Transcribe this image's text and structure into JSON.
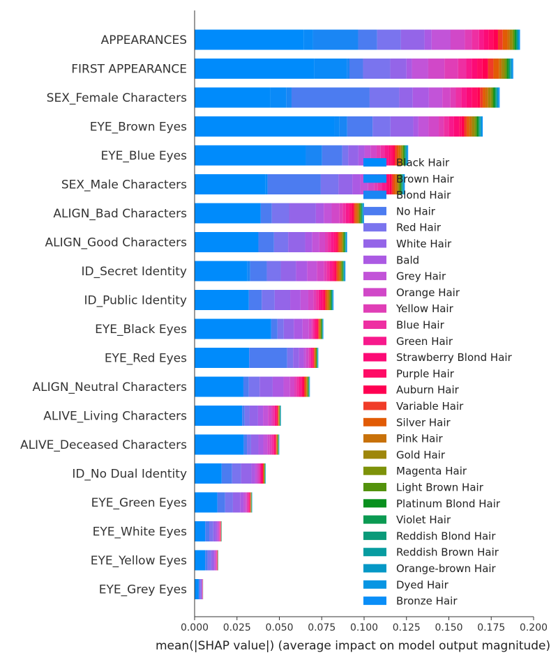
{
  "chart_data": {
    "type": "bar",
    "orientation": "horizontal",
    "stacked": true,
    "title": "",
    "xlabel": "mean(|SHAP value|) (average impact on model output magnitude)",
    "ylabel": "",
    "xlim": [
      0,
      0.2
    ],
    "xticks": [
      "0.000",
      "0.025",
      "0.050",
      "0.075",
      "0.100",
      "0.125",
      "0.150",
      "0.175",
      "0.200"
    ],
    "grid": false,
    "legend_position": "right",
    "categories": [
      "APPEARANCES",
      "FIRST APPEARANCE",
      "SEX_Female Characters",
      "EYE_Brown Eyes",
      "EYE_Blue Eyes",
      "SEX_Male Characters",
      "ALIGN_Bad Characters",
      "ALIGN_Good Characters",
      "ID_Secret Identity",
      "ID_Public Identity",
      "EYE_Black Eyes",
      "EYE_Red Eyes",
      "ALIGN_Neutral Characters",
      "ALIVE_Living Characters",
      "ALIVE_Deceased Characters",
      "ID_No Dual Identity",
      "EYE_Green Eyes",
      "EYE_White Eyes",
      "EYE_Yellow Eyes",
      "EYE_Grey Eyes"
    ],
    "totals": [
      0.192,
      0.188,
      0.18,
      0.17,
      0.126,
      0.124,
      0.1,
      0.09,
      0.089,
      0.082,
      0.076,
      0.073,
      0.068,
      0.051,
      0.05,
      0.042,
      0.034,
      0.016,
      0.014,
      0.005
    ],
    "series": [
      {
        "name": "Black Hair",
        "color": "#008bfb"
      },
      {
        "name": "Brown Hair",
        "color": "#0a8af8"
      },
      {
        "name": "Blond Hair",
        "color": "#1a86f4"
      },
      {
        "name": "No Hair",
        "color": "#4c7cf0"
      },
      {
        "name": "Red Hair",
        "color": "#7a74ee"
      },
      {
        "name": "White Hair",
        "color": "#9465e8"
      },
      {
        "name": "Bald",
        "color": "#ab5ae3"
      },
      {
        "name": "Grey Hair",
        "color": "#c254d8"
      },
      {
        "name": "Orange Hair",
        "color": "#d148c8"
      },
      {
        "name": "Yellow Hair",
        "color": "#e03eb6"
      },
      {
        "name": "Blue Hair",
        "color": "#ee2fa2"
      },
      {
        "name": "Green Hair",
        "color": "#f7198c"
      },
      {
        "name": "Strawberry Blond Hair",
        "color": "#fc0b76"
      },
      {
        "name": "Purple Hair",
        "color": "#ff0c66"
      },
      {
        "name": "Auburn Hair",
        "color": "#ff0052"
      },
      {
        "name": "Variable Hair",
        "color": "#f03c28"
      },
      {
        "name": "Silver Hair",
        "color": "#e15b05"
      },
      {
        "name": "Pink Hair",
        "color": "#c87109"
      },
      {
        "name": "Gold Hair",
        "color": "#9e860a"
      },
      {
        "name": "Magenta Hair",
        "color": "#7d9209"
      },
      {
        "name": "Light Brown Hair",
        "color": "#53920c"
      },
      {
        "name": "Platinum Blond Hair",
        "color": "#09901e"
      },
      {
        "name": "Violet Hair",
        "color": "#0b9a52"
      },
      {
        "name": "Reddish Blond Hair",
        "color": "#0a9a79"
      },
      {
        "name": "Reddish Brown Hair",
        "color": "#079ca0"
      },
      {
        "name": "Orange-brown Hair",
        "color": "#0598c6"
      },
      {
        "name": "Dyed Hair",
        "color": "#0795e3"
      },
      {
        "name": "Bronze Hair",
        "color": "#0a8ef7"
      }
    ],
    "segment_weights": [
      [
        0.46,
        0.04,
        0.19,
        0.08,
        0.1,
        0.1,
        0.03,
        0.08,
        0.06,
        0.03,
        0.03,
        0.02,
        0.02,
        0.02,
        0.02,
        0.02,
        0.02,
        0.01,
        0.01,
        0.005,
        0.005,
        0.005,
        0.003,
        0.003,
        0.003,
        0.003,
        0.003,
        0.003
      ],
      [
        0.44,
        0.12,
        0.01,
        0.05,
        0.1,
        0.06,
        0.02,
        0.06,
        0.06,
        0.05,
        0.03,
        0.02,
        0.02,
        0.02,
        0.02,
        0.02,
        0.02,
        0.01,
        0.01,
        0.005,
        0.005,
        0.005,
        0.003,
        0.003,
        0.003,
        0.003,
        0.003,
        0.003
      ],
      [
        0.28,
        0.06,
        0.02,
        0.29,
        0.11,
        0.05,
        0.06,
        0.05,
        0.03,
        0.02,
        0.02,
        0.02,
        0.02,
        0.02,
        0.01,
        0.01,
        0.01,
        0.01,
        0.01,
        0.005,
        0.005,
        0.005,
        0.003,
        0.003,
        0.003,
        0.003,
        0.003,
        0.003
      ],
      [
        0.55,
        0.02,
        0.03,
        0.1,
        0.07,
        0.09,
        0.02,
        0.04,
        0.04,
        0.02,
        0.02,
        0.02,
        0.02,
        0.01,
        0.01,
        0.01,
        0.01,
        0.01,
        0.01,
        0.005,
        0.005,
        0.005,
        0.003,
        0.003,
        0.003,
        0.003,
        0.003,
        0.003
      ],
      [
        0.55,
        0.0,
        0.08,
        0.1,
        0.03,
        0.05,
        0.03,
        0.03,
        0.03,
        0.02,
        0.02,
        0.02,
        0.01,
        0.01,
        0.01,
        0.01,
        0.01,
        0.01,
        0.005,
        0.005,
        0.005,
        0.003,
        0.003,
        0.003,
        0.003,
        0.003,
        0.003,
        0.003
      ],
      [
        0.36,
        0.01,
        0.0,
        0.27,
        0.09,
        0.07,
        0.04,
        0.04,
        0.03,
        0.02,
        0.02,
        0.02,
        0.01,
        0.01,
        0.01,
        0.01,
        0.01,
        0.01,
        0.005,
        0.005,
        0.005,
        0.003,
        0.003,
        0.003,
        0.003,
        0.003,
        0.003,
        0.003
      ],
      [
        0.42,
        0.0,
        0.0,
        0.07,
        0.11,
        0.17,
        0.05,
        0.05,
        0.05,
        0.02,
        0.02,
        0.02,
        0.01,
        0.01,
        0.01,
        0.01,
        0.01,
        0.01,
        0.005,
        0.005,
        0.005,
        0.003,
        0.003,
        0.003,
        0.003,
        0.003,
        0.003,
        0.003
      ],
      [
        0.45,
        0.0,
        0.0,
        0.11,
        0.1,
        0.12,
        0.05,
        0.05,
        0.04,
        0.02,
        0.02,
        0.02,
        0.01,
        0.01,
        0.01,
        0.01,
        0.01,
        0.01,
        0.005,
        0.005,
        0.005,
        0.003,
        0.003,
        0.003,
        0.003,
        0.003,
        0.003,
        0.003
      ],
      [
        0.38,
        0.0,
        0.02,
        0.12,
        0.1,
        0.11,
        0.08,
        0.07,
        0.05,
        0.02,
        0.02,
        0.02,
        0.01,
        0.01,
        0.01,
        0.01,
        0.01,
        0.01,
        0.005,
        0.005,
        0.005,
        0.003,
        0.003,
        0.003,
        0.003,
        0.003,
        0.003,
        0.003
      ],
      [
        0.42,
        0.0,
        0.0,
        0.1,
        0.1,
        0.12,
        0.08,
        0.06,
        0.04,
        0.02,
        0.02,
        0.02,
        0.01,
        0.01,
        0.01,
        0.01,
        0.01,
        0.01,
        0.005,
        0.005,
        0.005,
        0.003,
        0.003,
        0.003,
        0.003,
        0.003,
        0.003,
        0.003
      ],
      [
        0.61,
        0.0,
        0.0,
        0.05,
        0.05,
        0.08,
        0.07,
        0.05,
        0.02,
        0.01,
        0.01,
        0.01,
        0.01,
        0.01,
        0.005,
        0.005,
        0.005,
        0.005,
        0.005,
        0.003,
        0.003,
        0.003,
        0.002,
        0.002,
        0.002,
        0.002,
        0.002,
        0.002
      ],
      [
        0.46,
        0.0,
        0.0,
        0.32,
        0.05,
        0.05,
        0.04,
        0.02,
        0.02,
        0.01,
        0.01,
        0.01,
        0.005,
        0.005,
        0.005,
        0.005,
        0.005,
        0.005,
        0.003,
        0.003,
        0.003,
        0.002,
        0.002,
        0.002,
        0.002,
        0.002,
        0.002,
        0.002
      ],
      [
        0.45,
        0.0,
        0.0,
        0.05,
        0.1,
        0.12,
        0.1,
        0.06,
        0.04,
        0.02,
        0.02,
        0.02,
        0.01,
        0.01,
        0.01,
        0.01,
        0.01,
        0.005,
        0.005,
        0.005,
        0.003,
        0.003,
        0.002,
        0.002,
        0.002,
        0.002,
        0.002,
        0.002
      ],
      [
        0.57,
        0.0,
        0.0,
        0.03,
        0.06,
        0.1,
        0.06,
        0.06,
        0.04,
        0.02,
        0.02,
        0.01,
        0.01,
        0.01,
        0.005,
        0.005,
        0.005,
        0.005,
        0.005,
        0.003,
        0.003,
        0.003,
        0.002,
        0.002,
        0.002,
        0.002,
        0.002,
        0.002
      ],
      [
        0.6,
        0.0,
        0.0,
        0.04,
        0.05,
        0.09,
        0.06,
        0.05,
        0.03,
        0.02,
        0.02,
        0.01,
        0.01,
        0.01,
        0.005,
        0.005,
        0.005,
        0.005,
        0.005,
        0.003,
        0.003,
        0.003,
        0.002,
        0.002,
        0.002,
        0.002,
        0.002,
        0.002
      ],
      [
        0.39,
        0.0,
        0.0,
        0.15,
        0.13,
        0.15,
        0.05,
        0.03,
        0.02,
        0.02,
        0.01,
        0.01,
        0.01,
        0.01,
        0.005,
        0.005,
        0.005,
        0.005,
        0.005,
        0.003,
        0.003,
        0.003,
        0.002,
        0.002,
        0.002,
        0.002,
        0.002,
        0.002
      ],
      [
        0.41,
        0.0,
        0.0,
        0.14,
        0.14,
        0.13,
        0.06,
        0.04,
        0.02,
        0.02,
        0.01,
        0.01,
        0.01,
        0.005,
        0.005,
        0.005,
        0.005,
        0.005,
        0.003,
        0.003,
        0.003,
        0.002,
        0.002,
        0.002,
        0.002,
        0.002,
        0.002,
        0.002
      ],
      [
        0.4,
        0.0,
        0.0,
        0.15,
        0.15,
        0.1,
        0.06,
        0.04,
        0.02,
        0.02,
        0.01,
        0.01,
        0.01,
        0.005,
        0.005,
        0.005,
        0.005,
        0.005,
        0.003,
        0.003,
        0.003,
        0.002,
        0.002,
        0.002,
        0.002,
        0.002,
        0.002,
        0.002
      ],
      [
        0.45,
        0.0,
        0.0,
        0.1,
        0.15,
        0.1,
        0.05,
        0.04,
        0.02,
        0.02,
        0.01,
        0.01,
        0.01,
        0.005,
        0.005,
        0.005,
        0.005,
        0.005,
        0.003,
        0.003,
        0.003,
        0.002,
        0.002,
        0.002,
        0.002,
        0.002,
        0.002,
        0.002
      ],
      [
        0.5,
        0.0,
        0.0,
        0.1,
        0.15,
        0.1,
        0.05,
        0.03,
        0.02,
        0.01,
        0.01,
        0.01,
        0.005,
        0.005,
        0.005,
        0.005,
        0.005,
        0.003,
        0.003,
        0.003,
        0.002,
        0.002,
        0.002,
        0.002,
        0.002,
        0.002,
        0.002,
        0.002
      ]
    ]
  }
}
